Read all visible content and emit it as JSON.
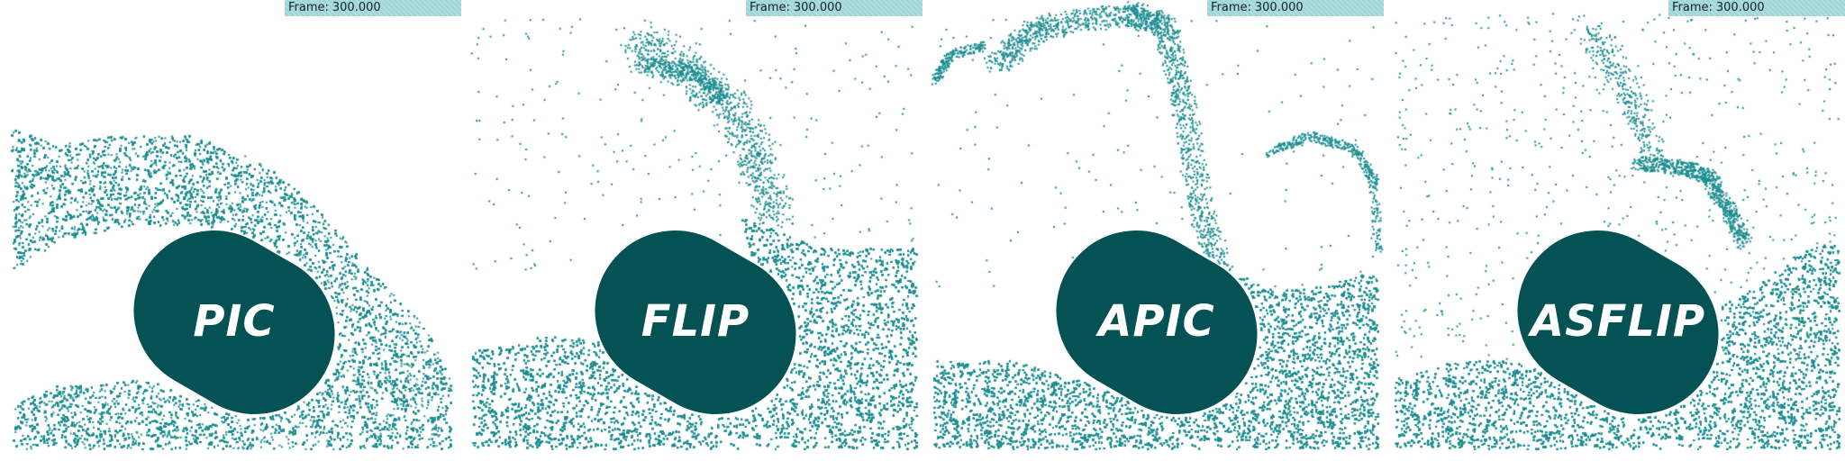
{
  "panels": [
    {
      "method": "PIC",
      "frame_label": "Frame:",
      "frame_value": "300.000"
    },
    {
      "method": "FLIP",
      "frame_label": "Frame:",
      "frame_value": "300.000"
    },
    {
      "method": "APIC",
      "frame_label": "Frame:",
      "frame_value": "300.000"
    },
    {
      "method": "ASFLIP",
      "frame_label": "Frame:",
      "frame_value": "300.000"
    }
  ],
  "colors": {
    "particle": "#1a8c8f",
    "obstacle": "#055254",
    "frame_bar": "#9cd3d3",
    "background": "#ffffff"
  }
}
